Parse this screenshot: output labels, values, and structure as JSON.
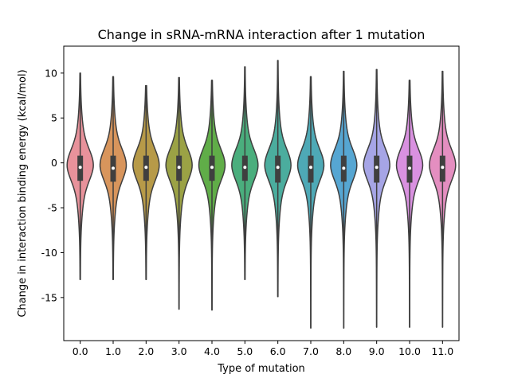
{
  "chart_data": {
    "type": "violin",
    "title": "Change in sRNA-mRNA interaction after 1 mutation",
    "xlabel": "Type of mutation",
    "ylabel": "Change in interaction binding energy (kcal/mol)",
    "categories": [
      "0.0",
      "1.0",
      "2.0",
      "3.0",
      "4.0",
      "5.0",
      "6.0",
      "7.0",
      "8.0",
      "9.0",
      "10.0",
      "11.0"
    ],
    "yticks": [
      -15,
      -10,
      -5,
      0,
      5,
      10
    ],
    "ylim": [
      -19.8,
      13.0
    ],
    "grid": false,
    "legend": "none",
    "colors": [
      "#e8929b",
      "#d8955c",
      "#b79a48",
      "#9ba245",
      "#60ad48",
      "#4aae7d",
      "#4bad9e",
      "#4ea9b6",
      "#56a6d2",
      "#a6a5e6",
      "#d991e0",
      "#e48ec0"
    ],
    "violins": [
      {
        "category": "0.0",
        "min": -13.0,
        "max": 10.0,
        "q1": -2.0,
        "median": -0.5,
        "q3": 0.8
      },
      {
        "category": "1.0",
        "min": -13.0,
        "max": 9.6,
        "q1": -2.1,
        "median": -0.6,
        "q3": 0.8
      },
      {
        "category": "2.0",
        "min": -13.0,
        "max": 8.6,
        "q1": -2.0,
        "median": -0.5,
        "q3": 0.8
      },
      {
        "category": "3.0",
        "min": -16.3,
        "max": 9.5,
        "q1": -2.0,
        "median": -0.5,
        "q3": 0.8
      },
      {
        "category": "4.0",
        "min": -16.4,
        "max": 9.2,
        "q1": -2.0,
        "median": -0.5,
        "q3": 0.8
      },
      {
        "category": "5.0",
        "min": -13.0,
        "max": 10.7,
        "q1": -2.0,
        "median": -0.5,
        "q3": 0.8
      },
      {
        "category": "6.0",
        "min": -14.9,
        "max": 11.4,
        "q1": -2.2,
        "median": -0.5,
        "q3": 0.8
      },
      {
        "category": "7.0",
        "min": -18.4,
        "max": 9.6,
        "q1": -2.2,
        "median": -0.5,
        "q3": 0.8
      },
      {
        "category": "8.0",
        "min": -18.4,
        "max": 10.2,
        "q1": -2.1,
        "median": -0.6,
        "q3": 0.8
      },
      {
        "category": "9.0",
        "min": -18.3,
        "max": 10.4,
        "q1": -2.2,
        "median": -0.5,
        "q3": 0.8
      },
      {
        "category": "10.0",
        "min": -18.3,
        "max": 9.2,
        "q1": -2.2,
        "median": -0.6,
        "q3": 0.8
      },
      {
        "category": "11.0",
        "min": -18.3,
        "max": 10.2,
        "q1": -2.1,
        "median": -0.5,
        "q3": 0.8
      }
    ]
  }
}
